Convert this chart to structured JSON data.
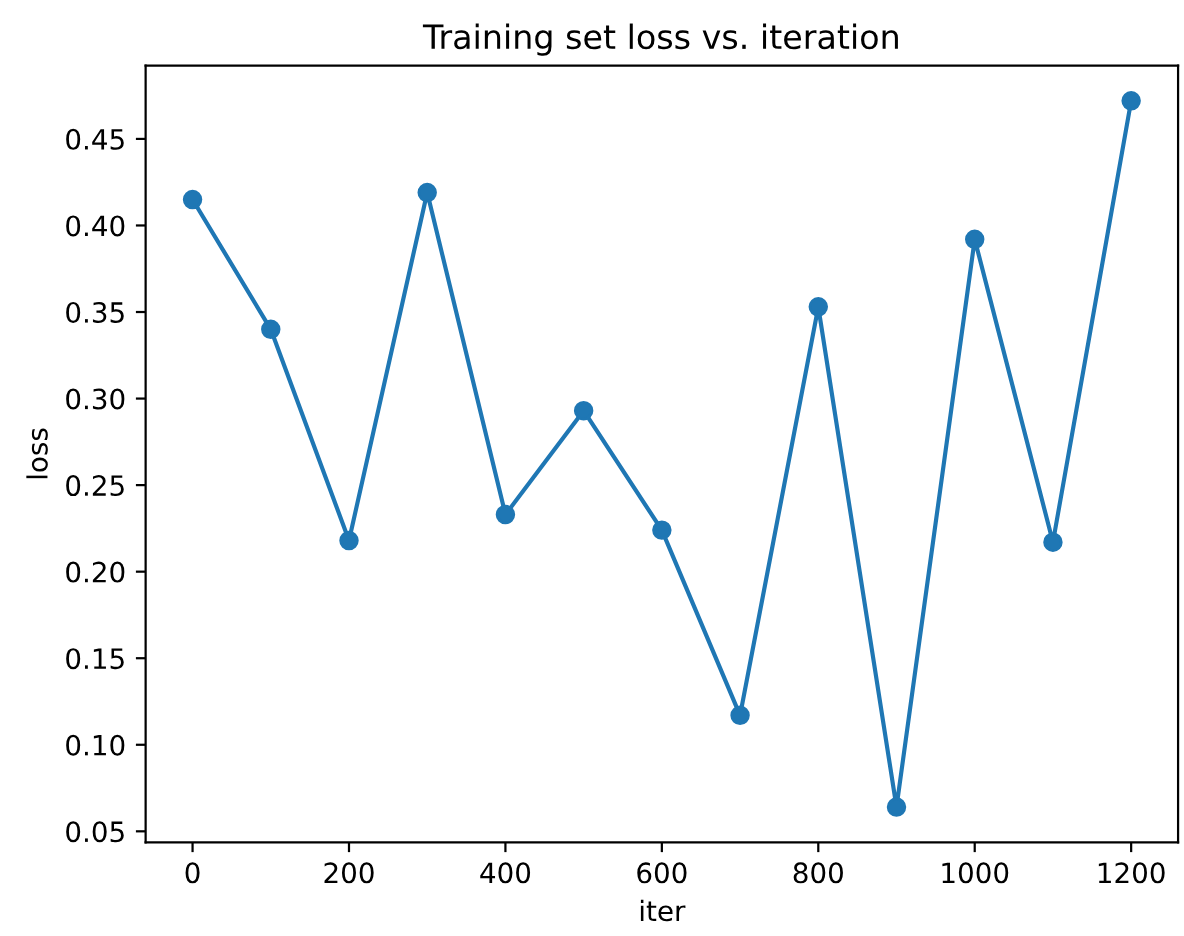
{
  "chart_data": {
    "type": "line",
    "title": "Training set loss vs. iteration",
    "xlabel": "iter",
    "ylabel": "loss",
    "x": [
      0,
      100,
      200,
      300,
      400,
      500,
      600,
      700,
      800,
      900,
      1000,
      1100,
      1200
    ],
    "series": [
      {
        "color": "#1f77b4",
        "values": [
          0.415,
          0.34,
          0.218,
          0.419,
          0.233,
          0.293,
          0.224,
          0.117,
          0.353,
          0.064,
          0.392,
          0.217,
          0.472
        ]
      }
    ],
    "marker": "circle",
    "line_style": "solid",
    "grid": false,
    "legend": false,
    "xlim": [
      -60,
      1260
    ],
    "ylim": [
      0.0436,
      0.4924
    ],
    "xticks": [
      0,
      200,
      400,
      600,
      800,
      1000,
      1200
    ],
    "yticks": [
      0.05,
      {
        "value": 0.1,
        "label": "0.10"
      },
      0.15,
      {
        "value": 0.2,
        "label": "0.20"
      },
      0.25,
      {
        "value": 0.3,
        "label": "0.30"
      },
      0.35,
      {
        "value": 0.4,
        "label": "0.40"
      },
      0.45
    ]
  }
}
